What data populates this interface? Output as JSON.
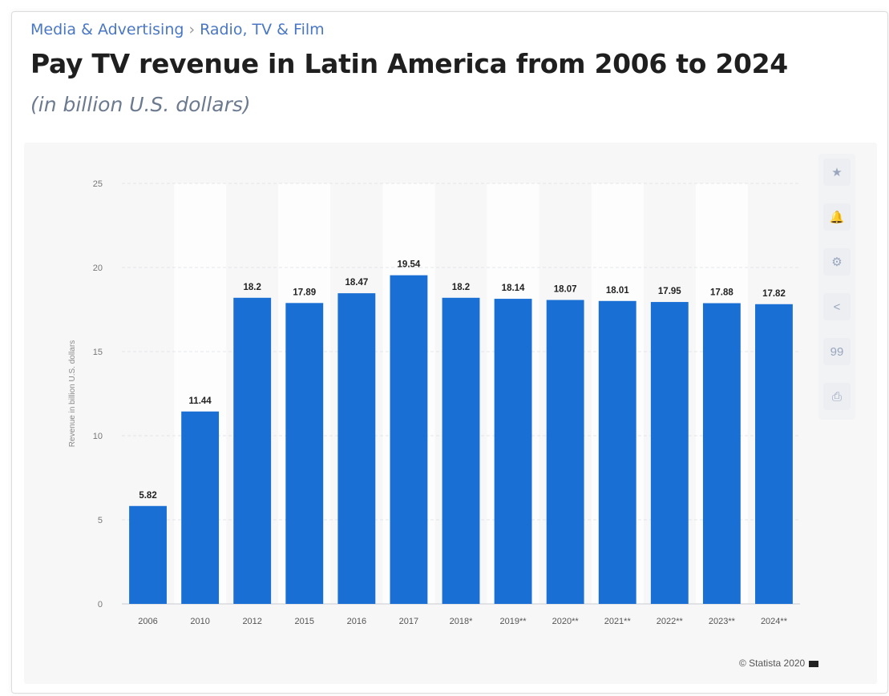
{
  "breadcrumb": {
    "items": [
      "Media & Advertising",
      "Radio, TV & Film"
    ],
    "separator": "›"
  },
  "header": {
    "title": "Pay TV revenue in Latin America from 2006 to 2024",
    "subtitle": "(in billion U.S. dollars)"
  },
  "toolbar": {
    "icons": [
      "star-icon",
      "bell-icon",
      "gear-icon",
      "share-icon",
      "quote-icon",
      "print-icon"
    ],
    "glyphs": [
      "★",
      "🔔",
      "⚙",
      "<",
      "99",
      "⎙"
    ]
  },
  "credit": {
    "text": "© Statista 2020"
  },
  "colors": {
    "bar": "#1a6fd4",
    "grid": "#e4e6ea",
    "axis_text": "#777777",
    "label_text": "#222222"
  },
  "chart_data": {
    "type": "bar",
    "categories": [
      "2006",
      "2010",
      "2012",
      "2015",
      "2016",
      "2017",
      "2018*",
      "2019**",
      "2020**",
      "2021**",
      "2022**",
      "2023**",
      "2024**"
    ],
    "values": [
      5.82,
      11.44,
      18.2,
      17.89,
      18.47,
      19.54,
      18.2,
      18.14,
      18.07,
      18.01,
      17.95,
      17.88,
      17.82
    ],
    "value_labels": [
      "5.82",
      "11.44",
      "18.2",
      "17.89",
      "18.47",
      "19.54",
      "18.2",
      "18.14",
      "18.07",
      "18.01",
      "17.95",
      "17.88",
      "17.82"
    ],
    "title": "Pay TV revenue in Latin America from 2006 to 2024",
    "subtitle": "(in billion U.S. dollars)",
    "xlabel": "",
    "ylabel": "Revenue in billion U.S. dollars",
    "ylim": [
      0,
      25
    ],
    "yticks": [
      0,
      5,
      10,
      15,
      20,
      25
    ],
    "grid": true,
    "legend": "none"
  }
}
